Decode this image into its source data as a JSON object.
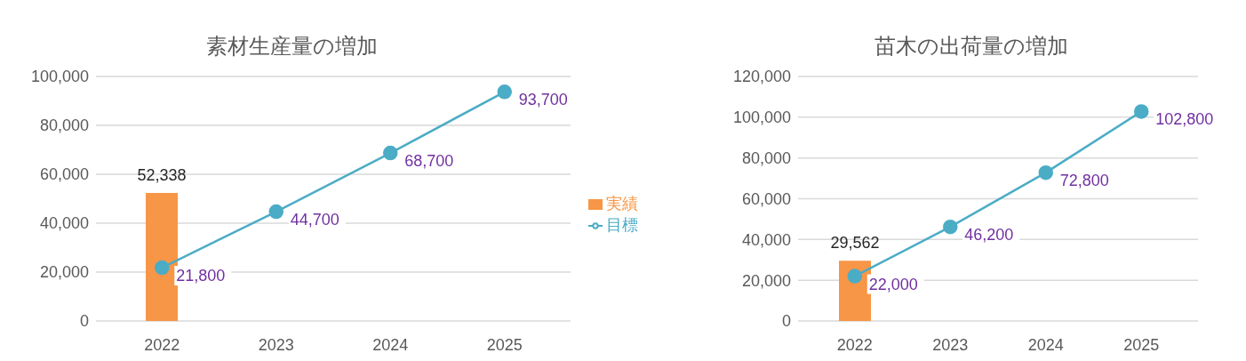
{
  "chart_data": [
    {
      "type": "bar",
      "title": "素材生産量の増加",
      "categories": [
        "2022",
        "2023",
        "2024",
        "2025"
      ],
      "series": [
        {
          "name": "実績",
          "type": "bar",
          "color": "#f79646",
          "values": [
            52338,
            null,
            null,
            null
          ],
          "value_labels": [
            "52,338",
            null,
            null,
            null
          ]
        },
        {
          "name": "目標",
          "type": "line",
          "color": "#4bacc6",
          "values": [
            21800,
            44700,
            68700,
            93700
          ],
          "value_labels": [
            "21,800",
            "44,700",
            "68,700",
            "93,700"
          ]
        }
      ],
      "ylim": [
        0,
        100000
      ],
      "yticks": [
        {
          "value": 0,
          "label": "0"
        },
        {
          "value": 20000,
          "label": "20,000"
        },
        {
          "value": 40000,
          "label": "40,000"
        },
        {
          "value": 60000,
          "label": "60,000"
        },
        {
          "value": 80000,
          "label": "80,000"
        },
        {
          "value": 100000,
          "label": "100,000"
        }
      ],
      "grid": "y",
      "legend": "right",
      "marker": "circle"
    },
    {
      "type": "bar",
      "title": "苗木の出荷量の増加",
      "categories": [
        "2022",
        "2023",
        "2024",
        "2025"
      ],
      "series": [
        {
          "type": "bar",
          "color": "#f79646",
          "values": [
            29562,
            null,
            null,
            null
          ],
          "value_labels": [
            "29,562",
            null,
            null,
            null
          ]
        },
        {
          "type": "line",
          "color": "#4bacc6",
          "values": [
            22000,
            46200,
            72800,
            102800
          ],
          "value_labels": [
            "22,000",
            "46,200",
            "72,800",
            "102,800"
          ]
        }
      ],
      "ylim": [
        0,
        120000
      ],
      "yticks": [
        {
          "value": 0,
          "label": "0"
        },
        {
          "value": 20000,
          "label": "20,000"
        },
        {
          "value": 40000,
          "label": "40,000"
        },
        {
          "value": 60000,
          "label": "60,000"
        },
        {
          "value": 80000,
          "label": "80,000"
        },
        {
          "value": 100000,
          "label": "100,000"
        },
        {
          "value": 120000,
          "label": "120,000"
        }
      ],
      "grid": "y",
      "legend": false,
      "marker": "circle"
    }
  ]
}
